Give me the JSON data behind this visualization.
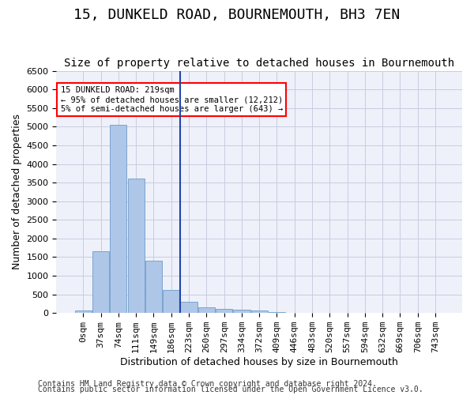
{
  "title": "15, DUNKELD ROAD, BOURNEMOUTH, BH3 7EN",
  "subtitle": "Size of property relative to detached houses in Bournemouth",
  "xlabel": "Distribution of detached houses by size in Bournemouth",
  "ylabel": "Number of detached properties",
  "bin_labels": [
    "0sqm",
    "37sqm",
    "74sqm",
    "111sqm",
    "149sqm",
    "186sqm",
    "223sqm",
    "260sqm",
    "297sqm",
    "334sqm",
    "372sqm",
    "409sqm",
    "446sqm",
    "483sqm",
    "520sqm",
    "557sqm",
    "594sqm",
    "632sqm",
    "669sqm",
    "706sqm",
    "743sqm"
  ],
  "bar_values": [
    75,
    1650,
    5050,
    3600,
    1400,
    620,
    300,
    150,
    120,
    80,
    60,
    30,
    0,
    0,
    0,
    0,
    0,
    0,
    0,
    0,
    0
  ],
  "bar_color": "#aec6e8",
  "bar_edge_color": "#5a8fc0",
  "ylim": [
    0,
    6500
  ],
  "yticks": [
    0,
    500,
    1000,
    1500,
    2000,
    2500,
    3000,
    3500,
    4000,
    4500,
    5000,
    5500,
    6000,
    6500
  ],
  "vline_x": 5.5,
  "vline_color": "#2244aa",
  "annotation_text": "15 DUNKELD ROAD: 219sqm\n← 95% of detached houses are smaller (12,212)\n5% of semi-detached houses are larger (643) →",
  "annotation_box_color": "white",
  "annotation_box_edge_color": "red",
  "footer1": "Contains HM Land Registry data © Crown copyright and database right 2024.",
  "footer2": "Contains public sector information licensed under the Open Government Licence v3.0.",
  "bg_color": "#eef1fa",
  "grid_color": "#c8cce0",
  "title_fontsize": 13,
  "subtitle_fontsize": 10,
  "label_fontsize": 9,
  "tick_fontsize": 8,
  "footer_fontsize": 7
}
